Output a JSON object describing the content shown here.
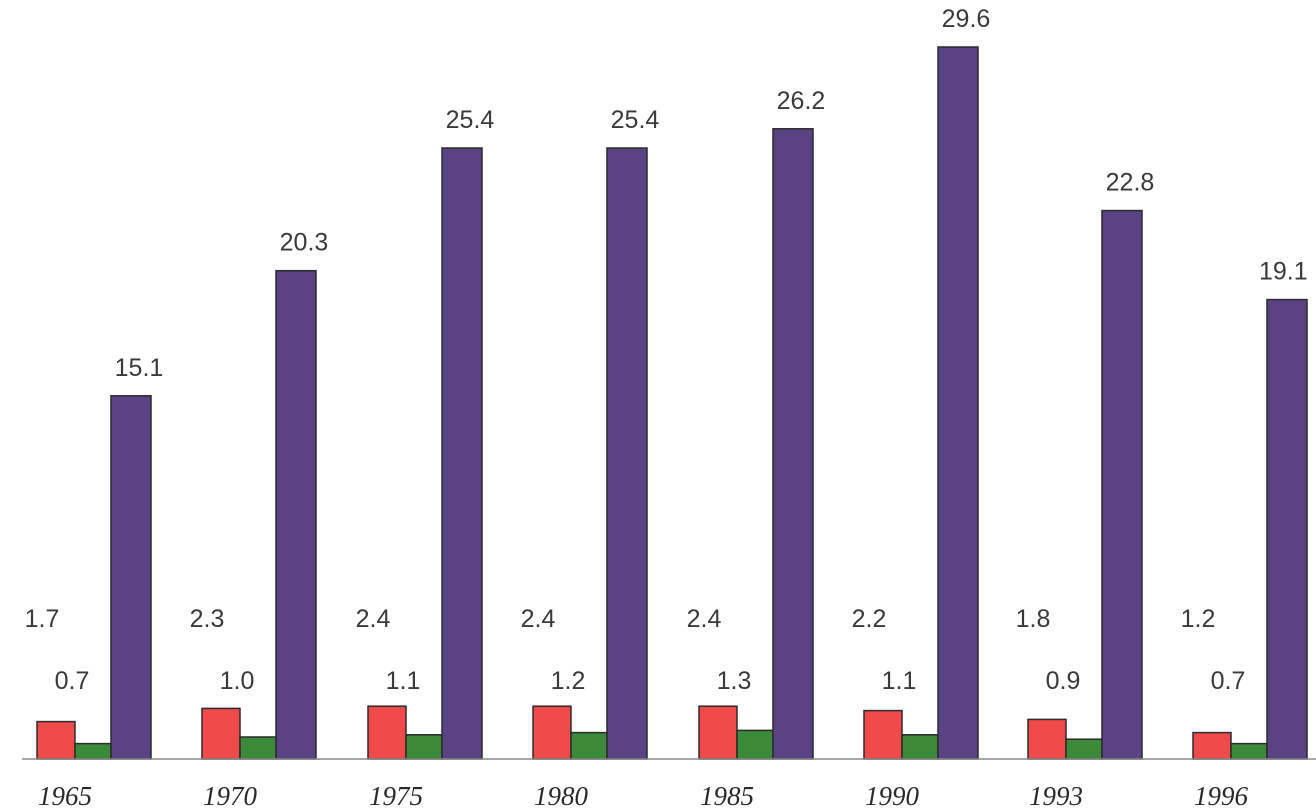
{
  "chart_data": {
    "type": "bar",
    "title": "",
    "xlabel": "",
    "ylabel": "",
    "categories": [
      "1965",
      "1970",
      "1975",
      "1980",
      "1985",
      "1990",
      "1993",
      "1996"
    ],
    "series": [
      {
        "color": "#f04a4a",
        "values": [
          1.7,
          2.3,
          2.4,
          2.4,
          2.4,
          2.2,
          1.8,
          1.2
        ],
        "labels": [
          "1.7",
          "2.3",
          "2.4",
          "2.4",
          "2.4",
          "2.2",
          "1.8",
          "1.2"
        ]
      },
      {
        "color": "#3a8a3a",
        "values": [
          0.7,
          1.0,
          1.1,
          1.2,
          1.3,
          1.1,
          0.9,
          0.7
        ],
        "labels": [
          "0.7",
          "1.0",
          "1.1",
          "1.2",
          "1.3",
          "1.1",
          "0.9",
          "0.7"
        ]
      },
      {
        "color": "#5a4385",
        "values": [
          15.1,
          20.3,
          25.4,
          25.4,
          26.2,
          29.6,
          22.8,
          19.1
        ],
        "labels": [
          "15.1",
          "20.3",
          "25.4",
          "25.4",
          "26.2",
          "29.6",
          "22.8",
          "19.1"
        ]
      }
    ],
    "ylim": [
      0,
      29.6
    ],
    "grid": false,
    "legend": "none"
  }
}
